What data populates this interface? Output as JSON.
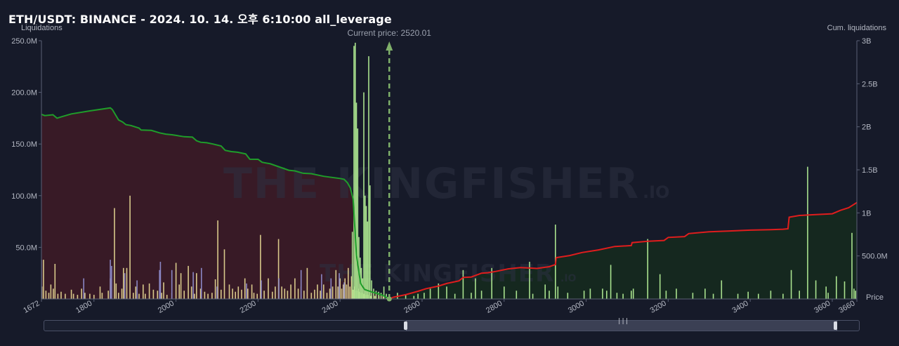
{
  "header": {
    "title": "ETH/USDT: BINANCE - 2024. 10. 14. 오후 6:10:00 all_leverage"
  },
  "watermark": {
    "big": "THE KINGFISHER",
    "big_suffix": ".IO",
    "small": "THE KINGFISHER",
    "small_suffix": ".IO"
  },
  "chart_data": {
    "type": "bar",
    "title": "ETH/USDT: BINANCE - 2024. 10. 14. 오후 6:10:00 all_leverage",
    "ylabel": "Liquidations",
    "y2label": "Cum. liquidations",
    "xlabel": "Price",
    "xlim": [
      1672,
      3660
    ],
    "ylim": [
      0,
      250000000
    ],
    "y2lim": [
      0,
      3000000000
    ],
    "current_price": 2520.01,
    "current_price_label": "Current price: 2520.01",
    "x_ticks": [
      "1672",
      "1800",
      "2000",
      "2200",
      "2400",
      "2600",
      "2800",
      "3000",
      "3200",
      "3400",
      "3600",
      "3660"
    ],
    "x_tick_values": [
      1672,
      1800,
      2000,
      2200,
      2400,
      2600,
      2800,
      3000,
      3200,
      3400,
      3600,
      3660
    ],
    "y_ticks": [
      "250.0M",
      "200.0M",
      "150.0M",
      "100.0M",
      "50.0M"
    ],
    "y_tick_values": [
      250000000,
      200000000,
      150000000,
      100000000,
      50000000
    ],
    "y2_ticks": [
      "3B",
      "2.5B",
      "2B",
      "1.5B",
      "1B",
      "500.0M"
    ],
    "y2_tick_values": [
      3000000000,
      2500000000,
      2000000000,
      1500000000,
      1000000000,
      500000000
    ],
    "colors": {
      "long_bar": "#d8c98a",
      "long_bar_alt": "#8a86c4",
      "short_bar": "#a9e28e",
      "long_cum_line": "#1f9d2a",
      "short_cum_line": "#e01d1d",
      "long_fill": "#3a1a26",
      "short_fill": "#15291f",
      "current_price_line": "#7fb06a"
    },
    "cum_long": {
      "x": [
        1672,
        1680,
        1700,
        1710,
        1720,
        1745,
        1790,
        1840,
        1845,
        1860,
        1870,
        1878,
        1890,
        1910,
        1915,
        1940,
        1960,
        1975,
        1990,
        2000,
        2020,
        2040,
        2050,
        2060,
        2075,
        2090,
        2110,
        2120,
        2135,
        2150,
        2170,
        2180,
        2200,
        2210,
        2230,
        2260,
        2275,
        2290,
        2310,
        2330,
        2360,
        2400,
        2410,
        2418,
        2425,
        2432,
        2440,
        2450,
        2460,
        2475,
        2490,
        2505,
        2520
      ],
      "values": [
        2145000000,
        2130000000,
        2140000000,
        2100000000,
        2115000000,
        2150000000,
        2185000000,
        2220000000,
        2200000000,
        2080000000,
        2055000000,
        2025000000,
        2015000000,
        1985000000,
        1962000000,
        1958000000,
        1930000000,
        1915000000,
        1908000000,
        1900000000,
        1885000000,
        1880000000,
        1838000000,
        1820000000,
        1815000000,
        1800000000,
        1777000000,
        1727000000,
        1712000000,
        1705000000,
        1685000000,
        1623000000,
        1622000000,
        1588000000,
        1570000000,
        1520000000,
        1495000000,
        1488000000,
        1460000000,
        1455000000,
        1425000000,
        1400000000,
        1390000000,
        1350000000,
        1290000000,
        1160000000,
        510000000,
        180000000,
        110000000,
        85000000,
        65000000,
        40000000,
        0
      ]
    },
    "cum_short": {
      "x": [
        2520,
        2530,
        2560,
        2590,
        2610,
        2640,
        2660,
        2690,
        2700,
        2720,
        2745,
        2760,
        2780,
        2810,
        2840,
        2880,
        2910,
        2925,
        2927,
        2960,
        2990,
        3030,
        3070,
        3110,
        3112,
        3150,
        3190,
        3200,
        3240,
        3250,
        3300,
        3350,
        3400,
        3450,
        3480,
        3492,
        3495,
        3520,
        3560,
        3600,
        3620,
        3640,
        3660
      ],
      "values": [
        0,
        20000000,
        50000000,
        90000000,
        120000000,
        150000000,
        180000000,
        210000000,
        250000000,
        255000000,
        300000000,
        305000000,
        320000000,
        350000000,
        365000000,
        355000000,
        375000000,
        400000000,
        480000000,
        505000000,
        540000000,
        570000000,
        610000000,
        620000000,
        655000000,
        670000000,
        680000000,
        715000000,
        725000000,
        760000000,
        780000000,
        790000000,
        800000000,
        805000000,
        810000000,
        815000000,
        950000000,
        970000000,
        980000000,
        990000000,
        1030000000,
        1060000000,
        1120000000
      ]
    },
    "long_bars": {
      "x": [
        1673,
        1677,
        1683,
        1690,
        1695,
        1701,
        1705,
        1712,
        1720,
        1730,
        1745,
        1750,
        1760,
        1770,
        1778,
        1790,
        1800,
        1815,
        1820,
        1835,
        1840,
        1850,
        1854,
        1860,
        1868,
        1872,
        1880,
        1888,
        1896,
        1902,
        1910,
        1920,
        1925,
        1935,
        1945,
        1955,
        1965,
        1970,
        1978,
        1990,
        2000,
        2008,
        2012,
        2020,
        2030,
        2038,
        2045,
        2050,
        2060,
        2070,
        2078,
        2088,
        2096,
        2102,
        2110,
        2118,
        2130,
        2138,
        2145,
        2152,
        2160,
        2168,
        2175,
        2185,
        2190,
        2198,
        2206,
        2215,
        2225,
        2235,
        2242,
        2250,
        2258,
        2265,
        2272,
        2280,
        2290,
        2298,
        2305,
        2312,
        2320,
        2330,
        2338,
        2345,
        2352,
        2360,
        2368,
        2375,
        2382,
        2390,
        2395,
        2400,
        2404,
        2408,
        2412,
        2416,
        2420,
        2424,
        2428,
        2432,
        2436,
        2440,
        2444,
        2448,
        2452,
        2456,
        2460,
        2464,
        2468,
        2475,
        2485,
        2495,
        2505,
        2515
      ],
      "values": [
        12000000,
        38000000,
        8000000,
        6000000,
        14000000,
        10000000,
        34000000,
        5000000,
        7000000,
        5000000,
        9000000,
        5000000,
        4000000,
        10000000,
        6000000,
        5000000,
        4000000,
        12000000,
        6000000,
        8000000,
        20000000,
        88000000,
        15000000,
        6000000,
        10000000,
        30000000,
        30000000,
        100000000,
        6000000,
        12000000,
        5000000,
        14000000,
        5000000,
        15000000,
        9000000,
        8000000,
        6000000,
        16000000,
        4000000,
        6000000,
        35000000,
        14000000,
        25000000,
        8000000,
        32000000,
        12000000,
        5000000,
        25000000,
        10000000,
        7000000,
        5000000,
        6000000,
        19000000,
        76000000,
        9000000,
        48000000,
        14000000,
        10000000,
        7000000,
        12000000,
        9000000,
        20000000,
        10000000,
        14000000,
        6000000,
        5000000,
        62000000,
        8000000,
        20000000,
        7000000,
        12000000,
        58000000,
        12000000,
        10000000,
        8000000,
        14000000,
        20000000,
        10000000,
        12000000,
        8000000,
        30000000,
        6000000,
        9000000,
        14000000,
        8000000,
        14000000,
        6000000,
        10000000,
        12000000,
        28000000,
        12000000,
        20000000,
        10000000,
        14000000,
        20000000,
        14000000,
        30000000,
        12000000,
        22000000,
        9000000,
        12000000,
        8000000,
        10000000,
        7000000,
        6000000,
        5000000,
        5000000,
        4000000,
        4000000,
        3000000,
        3000000,
        3000000,
        3000000,
        2000000
      ]
    },
    "long_bars_alt": {
      "x": [
        1672,
        1775,
        1840,
        1843,
        1875,
        1905,
        1960,
        1962,
        1990,
        2042,
        2062,
        2100,
        2172,
        2208,
        2251,
        2305,
        2355,
        2378,
        2398,
        2410
      ],
      "values": [
        38000000,
        20000000,
        38000000,
        32000000,
        25000000,
        18000000,
        28000000,
        36000000,
        28000000,
        26000000,
        30000000,
        12000000,
        15000000,
        18000000,
        20000000,
        28000000,
        24000000,
        20000000,
        25000000,
        16000000
      ]
    },
    "short_bars": {
      "x": [
        2430,
        2434,
        2437,
        2440,
        2443,
        2446,
        2449,
        2452,
        2455,
        2458,
        2461,
        2464,
        2467,
        2470,
        2473,
        2477,
        2482,
        2488,
        2494,
        2500,
        2507,
        2513,
        2540,
        2560,
        2580,
        2590,
        2605,
        2620,
        2640,
        2660,
        2680,
        2700,
        2720,
        2730,
        2745,
        2770,
        2800,
        2830,
        2862,
        2870,
        2900,
        2910,
        2925,
        2931,
        2955,
        2995,
        3010,
        3040,
        3050,
        3060,
        3075,
        3090,
        3110,
        3115,
        3150,
        3180,
        3195,
        3220,
        3260,
        3290,
        3310,
        3330,
        3370,
        3395,
        3420,
        3450,
        3480,
        3500,
        3520,
        3540,
        3560,
        3585,
        3590,
        3610,
        3630,
        3648,
        3653,
        3657
      ],
      "values": [
        65000000,
        245000000,
        248000000,
        190000000,
        165000000,
        60000000,
        40000000,
        30000000,
        20000000,
        200000000,
        100000000,
        90000000,
        75000000,
        235000000,
        110000000,
        18000000,
        10000000,
        8000000,
        7000000,
        6000000,
        12000000,
        5000000,
        6000000,
        4000000,
        3000000,
        5000000,
        6000000,
        10000000,
        15000000,
        12000000,
        5000000,
        28000000,
        6000000,
        20000000,
        8000000,
        30000000,
        12000000,
        8000000,
        36000000,
        5000000,
        14000000,
        8000000,
        72000000,
        12000000,
        6000000,
        8000000,
        10000000,
        10000000,
        8000000,
        33000000,
        6000000,
        5000000,
        8000000,
        10000000,
        58000000,
        24000000,
        8000000,
        10000000,
        6000000,
        10000000,
        5000000,
        18000000,
        5000000,
        7000000,
        5000000,
        8000000,
        5000000,
        28000000,
        8000000,
        128000000,
        18000000,
        12000000,
        6000000,
        22000000,
        17000000,
        64000000,
        10000000,
        8000000
      ]
    }
  }
}
